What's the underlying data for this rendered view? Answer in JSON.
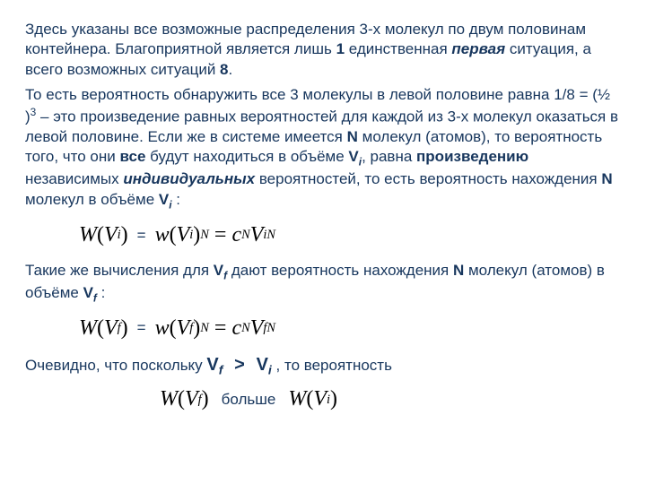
{
  "p1a": "Здесь указаны все возможные распределения 3-х молекул по двум половинам контейнера. Благоприятной является лишь ",
  "p1b": "1",
  "p1c": " единственная ",
  "p1d": "первая",
  "p1e": " ситуация, а всего возможных ситуаций ",
  "p1f": "8",
  "p1g": ".",
  "p2a": "То есть вероятность обнаружить все 3 молекулы в левой половине равна 1/8 =  (½ )",
  "p2exp": "3",
  "p2b": " – это  произведение равных вероятностей для каждой из 3-х молекул оказаться в левой половине. Если же в системе имеется ",
  "p2c": "N",
  "p2d": "  молекул (атомов), то вероятность  того, что они ",
  "p2e": "все",
  "p2f": " будут находиться в объёме  ",
  "Vi": "V",
  "Vi_sub": "i",
  "p2g": ", равна ",
  "p2h": "произведению",
  "p2i": " независимых ",
  "p2j": "индивидуальных",
  "p2k": " вероятностей, то есть вероятность нахождения ",
  "p2l": "N",
  "p2m": "  молекул в объёме ",
  "p2n": " :",
  "eq": "=",
  "W": "W",
  "w": "w",
  "c": "c",
  "N": "N",
  "Vf_sub": "f",
  "p3a": "Такие же вычисления для ",
  "p3b": " дают вероятность нахождения ",
  "p3c": "N",
  "p3d": " молекул (атомов) в объёме ",
  "p3e": " :",
  "p4a": "Очевидно, что поскольку    ",
  "gt": ">",
  "p4b": " , то вероятность",
  "p5": "больше"
}
